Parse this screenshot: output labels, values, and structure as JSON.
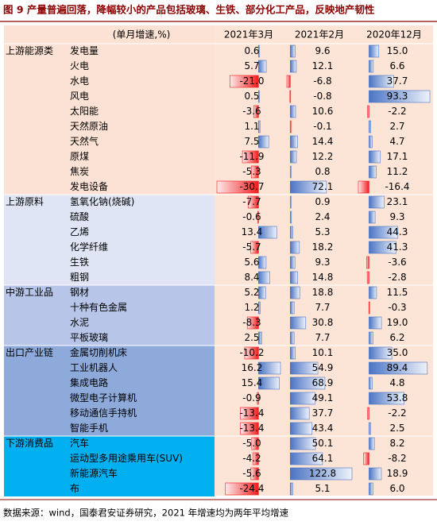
{
  "title": "图 9  产量普遍回落，降幅较小的产品包括玻璃、生铁、部分化工产品，反映地产韧性",
  "source": "数据来源：wind，国泰君安证券研究，2021 年增速均为两年平均增速",
  "table": {
    "item_header": "(单月增速,%)",
    "groups": [
      {
        "name": "上游能源类",
        "color": "#fbe2d5",
        "items": [
          "发电量",
          "火电",
          "水电",
          "风电",
          "太阳能",
          "天然原油",
          "天然气",
          "原煤",
          "焦炭",
          "发电设备"
        ]
      },
      {
        "name": "上游原料",
        "color": "#dfe5f5",
        "items": [
          "氢氧化钠(烧碱)",
          "硫酸",
          "乙烯",
          "化学纤维",
          "生铁",
          "粗钢"
        ]
      },
      {
        "name": "中游工业品",
        "color": "#b7c6e8",
        "items": [
          "钢材",
          "十种有色金属",
          "水泥",
          "平板玻璃"
        ]
      },
      {
        "name": "出口产业链",
        "color": "#8eaadb",
        "items": [
          "金属切削机床",
          "工业机器人",
          "集成电路",
          "微型电子计算机",
          "移动通信手持机",
          "智能手机"
        ]
      },
      {
        "name": "下游消费品",
        "color": "#00b0f0",
        "items": [
          "汽车",
          "运动型多用途乘用车(SUV)",
          "新能源汽车",
          "布"
        ]
      }
    ],
    "columns": [
      {
        "header": "2021年3月",
        "values": [
          0.6,
          5.7,
          -21.0,
          0.5,
          -3.6,
          1.1,
          7.5,
          -11.9,
          -5.3,
          -30.7,
          -7.7,
          -0.6,
          13.4,
          -5.7,
          5.6,
          8.4,
          5.2,
          1.2,
          -8.3,
          2.5,
          -10.2,
          16.2,
          15.4,
          -0.9,
          -13.4,
          -13.4,
          -5.0,
          -4.2,
          -5.6,
          -24.4
        ],
        "value_labels": [
          "0.6",
          "5.7",
          "-21.0",
          "0.5",
          "-3.6",
          "1.1",
          "7.5",
          "-11.9",
          "-5.3",
          "-30.7",
          "-7.7",
          "-0.6",
          "13.4",
          "-5.7",
          "5.6",
          "8.4",
          "5.2",
          "1.2",
          "-8.3",
          "2.5",
          "-10.2",
          "16.2",
          "15.4",
          "-0.9",
          "-13.4",
          "-13.4",
          "-5.0",
          "-4.2",
          "-5.6",
          "-24.4"
        ]
      },
      {
        "header": "2021年2月",
        "values": [
          9.6,
          12.1,
          -6.8,
          -0.8,
          10.6,
          -0.1,
          14.4,
          12.2,
          0.8,
          72.1,
          0.9,
          2.4,
          5.3,
          18.2,
          9.3,
          14.8,
          18.8,
          7.7,
          30.8,
          7.7,
          10.1,
          54.9,
          68.9,
          49.1,
          37.7,
          43.4,
          50.1,
          64.1,
          122.8,
          5.1
        ],
        "value_labels": [
          "9.6",
          "12.1",
          "-6.8",
          "-0.8",
          "10.6",
          "-0.1",
          "14.4",
          "12.2",
          "0.8",
          "72.1",
          "0.9",
          "2.4",
          "5.3",
          "18.2",
          "9.3",
          "14.8",
          "18.8",
          "7.7",
          "30.8",
          "7.7",
          "10.1",
          "54.9",
          "68.9",
          "49.1",
          "37.7",
          "43.4",
          "50.1",
          "64.1",
          "122.8",
          "5.1"
        ]
      },
      {
        "header": "2020年12月",
        "values": [
          15.0,
          6.6,
          37.7,
          93.3,
          -2.2,
          2.7,
          4.7,
          17.1,
          11.2,
          -16.4,
          23.1,
          9.3,
          44.3,
          41.3,
          -3.6,
          -2.8,
          11.5,
          -0.3,
          19.0,
          6.2,
          35.0,
          89.4,
          4.8,
          53.8,
          -2.2,
          2.5,
          8.2,
          -8.2,
          18.9,
          6.0
        ],
        "value_labels": [
          "15.0",
          "6.6",
          "37.7",
          "93.3",
          "-2.2",
          "2.7",
          "4.7",
          "17.1",
          "11.2",
          "-16.4",
          "23.1",
          "9.3",
          "44.3",
          "41.3",
          "-3.6",
          "-2.8",
          "11.5",
          "-0.3",
          "19.0",
          "6.2",
          "35.0",
          "89.4",
          "4.8",
          "53.8",
          "-2.2",
          "2.5",
          "8.2",
          "-8.2",
          "18.9",
          "6.0"
        ]
      }
    ]
  }
}
